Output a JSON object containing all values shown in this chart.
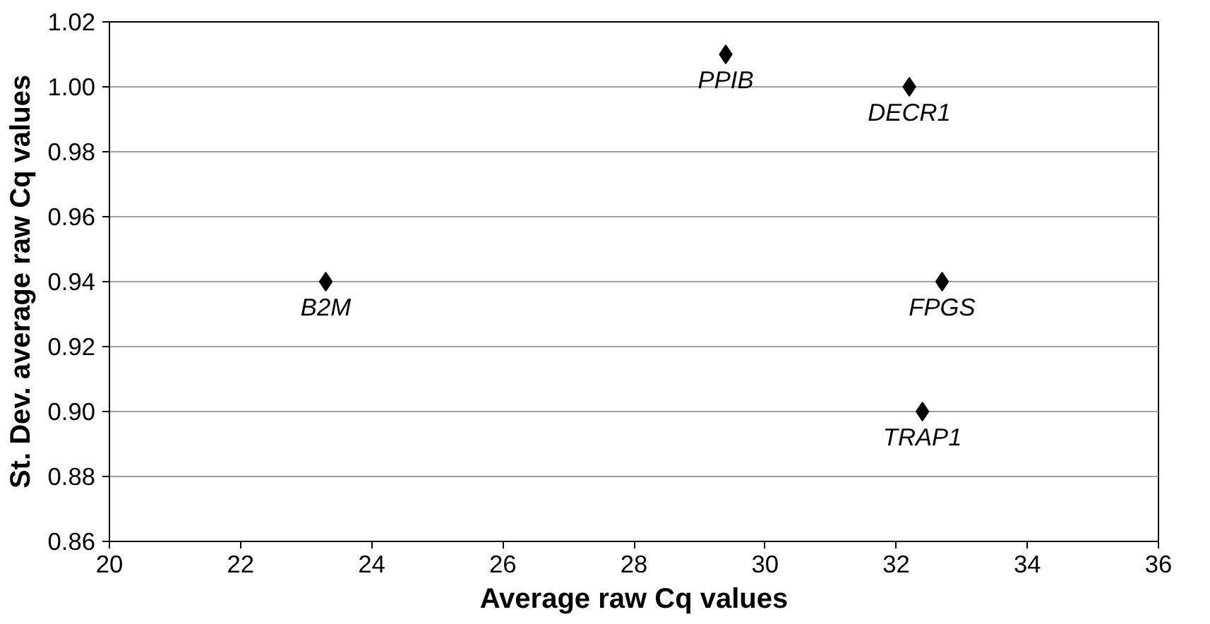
{
  "chart_data": {
    "type": "scatter",
    "xlabel": "Average raw Cq values",
    "ylabel": "St. Dev. average raw Cq values",
    "x": [
      23.3,
      29.4,
      32.2,
      32.7,
      32.4
    ],
    "series": [
      {
        "color": "#000000",
        "values": [
          0.94,
          1.01,
          1.0,
          0.94,
          0.9
        ]
      }
    ],
    "marker": "diamond",
    "grid": "y",
    "xlim": [
      20,
      36
    ],
    "xticks": [
      20,
      22,
      24,
      26,
      28,
      30,
      32,
      34,
      36
    ],
    "ylim": [
      0.86,
      1.02
    ],
    "yticks": [
      {
        "value": 0.86,
        "label": "0.86"
      },
      {
        "value": 0.88,
        "label": "0.88"
      },
      {
        "value": 0.9,
        "label": "0.90"
      },
      {
        "value": 0.92,
        "label": "0.92"
      },
      {
        "value": 0.94,
        "label": "0.94"
      },
      {
        "value": 0.96,
        "label": "0.96"
      },
      {
        "value": 0.98,
        "label": "0.98"
      },
      {
        "value": 1.0,
        "label": "1.00"
      },
      {
        "value": 1.02,
        "label": "1.02"
      }
    ],
    "annotations": [
      {
        "text": "B2M",
        "x": 23.3,
        "y": 0.94
      },
      {
        "text": "PPIB",
        "x": 29.4,
        "y": 1.01
      },
      {
        "text": "DECR1",
        "x": 32.2,
        "y": 1.0
      },
      {
        "text": "FPGS",
        "x": 32.7,
        "y": 0.94
      },
      {
        "text": "TRAP1",
        "x": 32.4,
        "y": 0.9
      }
    ]
  }
}
